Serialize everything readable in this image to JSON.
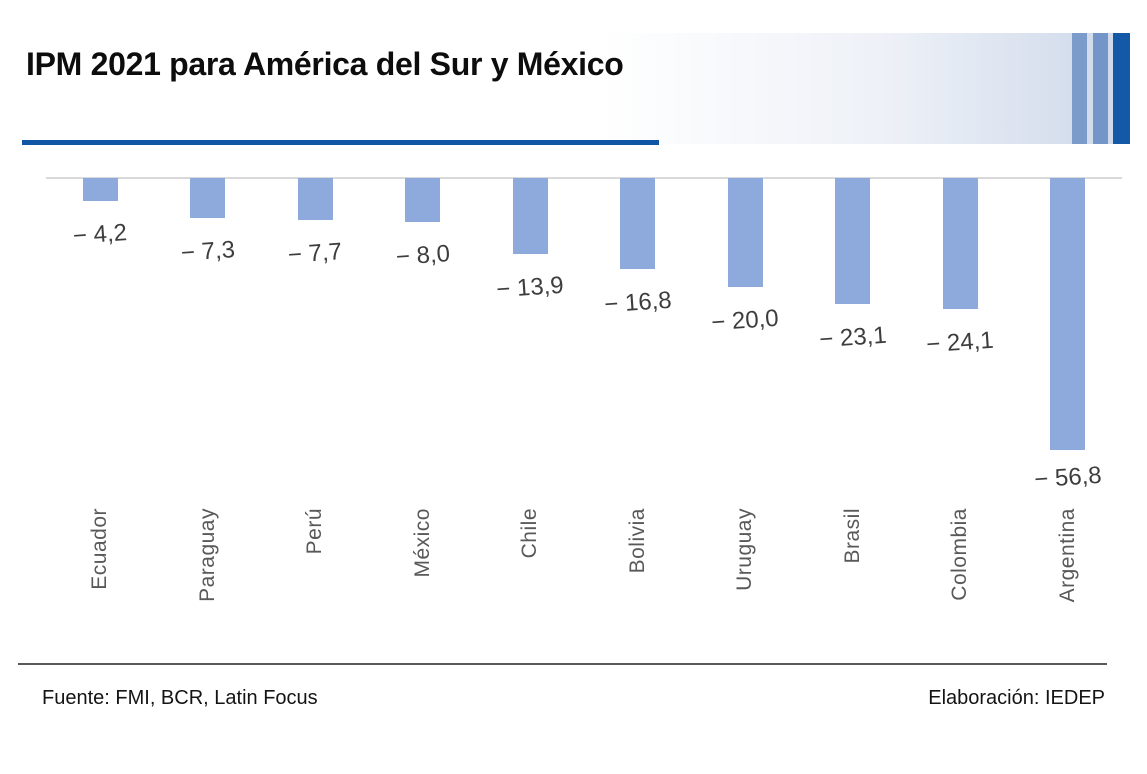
{
  "header": {
    "title": "IPM 2021 para América del Sur y México"
  },
  "footer": {
    "source": "Fuente: FMI, BCR, Latin Focus",
    "elaboration": "Elaboración: IEDEP"
  },
  "colors": {
    "bar": "#8EA9DB",
    "baseline": "#D9D9D9",
    "underline": "#1155A5",
    "banner_fade": "#CDD8EA",
    "stripe_light": "#7B9CCB",
    "stripe_mid": "#7495C7",
    "stripe_dark": "#1458A8",
    "value_label": "#3D3D3D",
    "category_label": "#595959",
    "footer_rule": "#595959"
  },
  "chart_data": {
    "type": "bar",
    "title": "IPM 2021 para América del Sur y México",
    "categories": [
      "Ecuador",
      "Paraguay",
      "Perú",
      "México",
      "Chile",
      "Bolivia",
      "Uruguay",
      "Brasil",
      "Colombia",
      "Argentina"
    ],
    "values": [
      -4.2,
      -7.3,
      -7.7,
      -8.0,
      -13.9,
      -16.8,
      -20.0,
      -23.1,
      -24.1,
      -56.8
    ],
    "value_labels": [
      "− 4,2",
      "− 7,3",
      "− 7,7",
      "− 8,0",
      "− 13,9",
      "− 16,8",
      "− 20,0",
      "− 23,1",
      "− 24,1",
      "− 56,8"
    ],
    "xlabel": "",
    "ylabel": "",
    "ylim": [
      -50,
      0
    ],
    "grid": false,
    "legend": false,
    "orientation": "vertical-below-zero-baseline",
    "note": "Argentina bar is clipped at the axis minimum (-50); its label sits below the clipped bar"
  }
}
